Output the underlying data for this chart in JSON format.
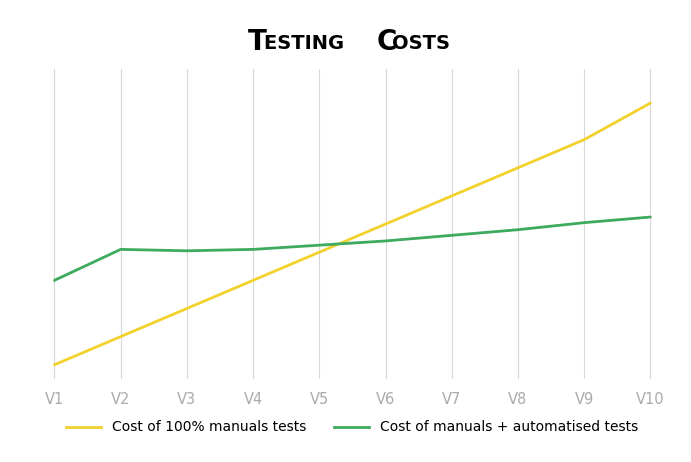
{
  "categories": [
    "V1",
    "V2",
    "V3",
    "V4",
    "V5",
    "V6",
    "V7",
    "V8",
    "V9",
    "V10"
  ],
  "yellow_values": [
    0.5,
    1.5,
    2.5,
    3.5,
    4.5,
    5.5,
    6.5,
    7.5,
    8.5,
    9.8
  ],
  "green_values": [
    3.5,
    4.6,
    4.55,
    4.6,
    4.75,
    4.9,
    5.1,
    5.3,
    5.55,
    5.75
  ],
  "yellow_color": "#F2D12D",
  "green_color": "#3EAA5E",
  "title_first": "T",
  "title_rest1": "ESTING ",
  "title_first2": "C",
  "title_rest2": "OSTS",
  "background_color": "#ffffff",
  "grid_color": "#d8d8d8",
  "yellow_label": "Cost of 100% manuals tests",
  "green_label": "Cost of manuals + automatised tests",
  "line_width": 2.0,
  "tick_color": "#aaaaaa",
  "tick_fontsize": 10.5,
  "legend_fontsize": 10,
  "ylim_min": 0,
  "ylim_max": 11.0
}
